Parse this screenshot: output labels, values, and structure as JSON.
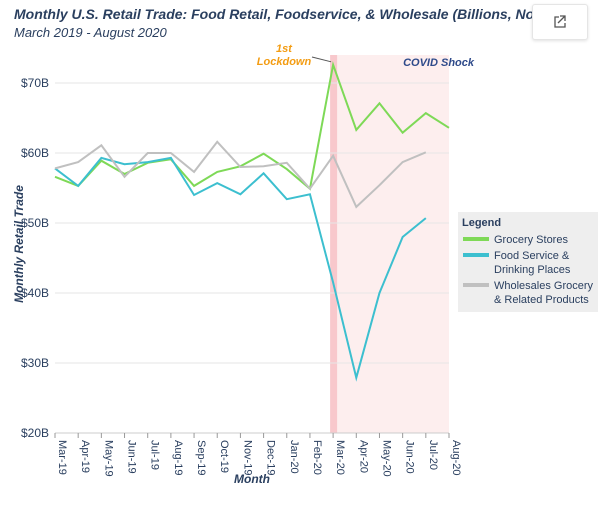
{
  "chart_data": {
    "type": "line",
    "title": "Monthly U.S. Retail Trade: Food Retail, Foodservice, & Wholesale (Billions, Nomin",
    "subtitle": "March 2019 - August 2020",
    "xlabel": "Month",
    "ylabel": "Monthly Retail Trade",
    "ylim": [
      20,
      74
    ],
    "yticks": [
      20,
      30,
      40,
      50,
      60,
      70
    ],
    "ytick_labels": [
      "$20B",
      "$30B",
      "$40B",
      "$50B",
      "$60B",
      "$70B"
    ],
    "categories": [
      "Mar-19",
      "Apr-19",
      "May-19",
      "Jun-19",
      "Jul-19",
      "Aug-19",
      "Sep-19",
      "Oct-19",
      "Nov-19",
      "Dec-19",
      "Jan-20",
      "Feb-20",
      "Mar-20",
      "Apr-20",
      "May-20",
      "Jun-20",
      "Jul-20",
      "Aug-20"
    ],
    "grid": true,
    "legend": {
      "title": "Legend",
      "placement": "right"
    },
    "series": [
      {
        "name": "Grocery Stores",
        "color": "#7ed957",
        "values": [
          56.6,
          55.3,
          58.9,
          57.0,
          58.6,
          59.1,
          55.3,
          57.3,
          58.1,
          59.9,
          57.7,
          54.9,
          72.6,
          63.3,
          67.1,
          62.9,
          65.7,
          63.6
        ]
      },
      {
        "name": "Food Service & Drinking Places",
        "color": "#3cbfcf",
        "values": [
          57.8,
          55.3,
          59.3,
          58.4,
          58.7,
          59.3,
          54.0,
          55.7,
          54.1,
          57.1,
          53.4,
          54.1,
          41.5,
          27.9,
          40.0,
          48.0,
          50.7,
          null
        ]
      },
      {
        "name": "Wholesales Grocery & Related Products",
        "color": "#c0c0c0",
        "values": [
          57.8,
          58.7,
          61.1,
          56.6,
          60.0,
          60.0,
          57.3,
          61.6,
          58.0,
          58.1,
          58.6,
          54.9,
          59.6,
          52.3,
          55.4,
          58.7,
          60.1,
          null
        ]
      }
    ],
    "annotations": [
      {
        "text": "1st Lockdown",
        "x": "Mar-20",
        "color": "#f39c12"
      },
      {
        "text": "COVID Shock",
        "color": "#2e4a8a"
      }
    ],
    "shaded_region": {
      "from": "Mar-20",
      "to": "Aug-20",
      "color": "#fdeeee"
    },
    "lockdown_band": {
      "at": "Mar-20",
      "color": "#f8c8cc"
    }
  },
  "toolbar": {
    "icon": "external-link-icon"
  }
}
